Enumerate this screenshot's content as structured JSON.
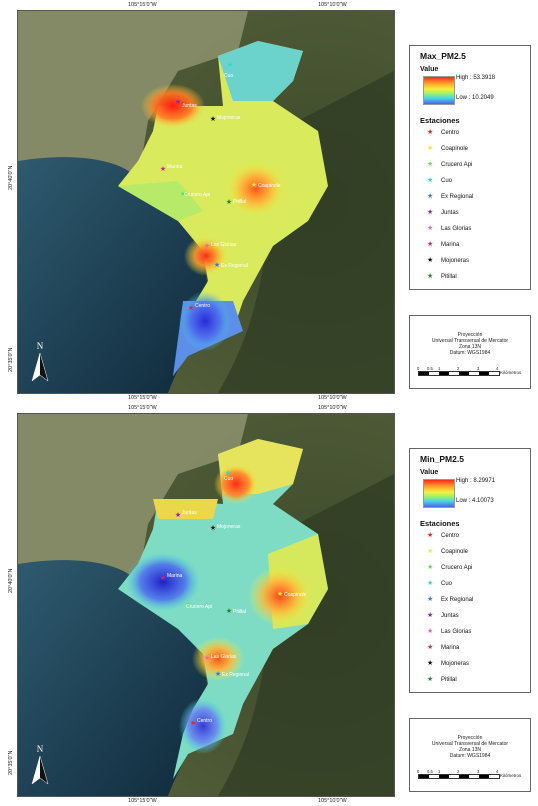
{
  "maps": [
    {
      "id": "max",
      "legend_title": "Max_PM2.5",
      "value_label": "Value",
      "high": "High : 53.3918",
      "low": "Low : 10.2049",
      "coords": {
        "top_left": "105°15'0\"W",
        "top_right": "105°10'0\"W",
        "bottom_left": "105°15'0\"W",
        "bottom_right": "105°10'0\"W",
        "left_upper": "20°40'0\"N",
        "left_lower": "20°35'0\"N"
      },
      "north": "N",
      "station_labels": [
        "Cuo",
        "Juntas",
        "Mojoneras",
        "Marina",
        "Crucero Api",
        "Pitillal",
        "Coapinole",
        "Las Glorias",
        "Ex Regional",
        "Centro"
      ]
    },
    {
      "id": "min",
      "legend_title": "Min_PM2.5",
      "value_label": "Value",
      "high": "High : 8.29971",
      "low": "Low : 4.10073",
      "coords": {
        "top_left": "105°15'0\"W",
        "top_right": "105°10'0\"W",
        "bottom_left": "105°15'0\"W",
        "bottom_right": "105°10'0\"W",
        "left_upper": "20°40'0\"N",
        "left_lower": "20°35'0\"N"
      },
      "north": "N",
      "station_labels": [
        "Cuo",
        "Juntas",
        "Mojoneras",
        "Marina",
        "Crucero Api",
        "Pitillal",
        "Coapinole",
        "Las Glorias",
        "Ex Regional",
        "Centro"
      ]
    }
  ],
  "estaciones_title": "Estaciones",
  "stations": [
    {
      "name": "Centro",
      "color": "#e8271b"
    },
    {
      "name": "Coapinole",
      "color": "#f4e83a"
    },
    {
      "name": "Crucero Api",
      "color": "#5fe84c"
    },
    {
      "name": "Cuo",
      "color": "#2fd9d6"
    },
    {
      "name": "Ex Regional",
      "color": "#2c7fe0"
    },
    {
      "name": "Juntas",
      "color": "#8a26b8"
    },
    {
      "name": "Las Glorias",
      "color": "#e866c8"
    },
    {
      "name": "Marina",
      "color": "#c82a7a"
    },
    {
      "name": "Mojoneras",
      "color": "#111111"
    },
    {
      "name": "Pitillal",
      "color": "#1f8a2e"
    }
  ],
  "projection": {
    "line1": "Proyección",
    "line2": "Universal Transversal de Mercator",
    "line3": "Zona 13N",
    "line4": "Datum: WGS1984"
  },
  "scale": {
    "ticks": [
      "0",
      "0.5",
      "1",
      "2",
      "3",
      "4"
    ],
    "unit": "Kilómetros"
  }
}
